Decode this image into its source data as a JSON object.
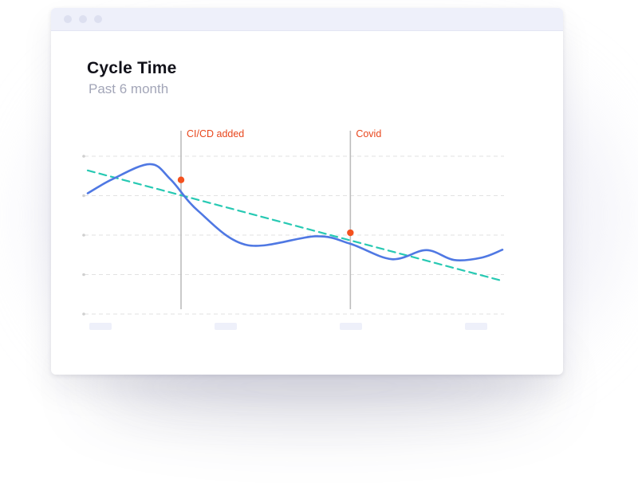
{
  "window": {
    "controls": [
      "window-dot",
      "window-dot",
      "window-dot"
    ]
  },
  "colors": {
    "series": "#4f78e3",
    "trend": "#27c9b3",
    "event_line": "#bdbdbd",
    "event_marker": "#f4511e",
    "event_label": "#e8461c",
    "grid": "#e2e2e2",
    "tick_placeholder": "#eef0fa"
  },
  "chart_data": {
    "type": "line",
    "title": "Cycle Time",
    "subtitle": "Past 6 month",
    "xlabel": "",
    "ylabel": "",
    "x_tick_labels": [
      "",
      "",
      "",
      ""
    ],
    "y_tick_labels": [
      "",
      "",
      "",
      "",
      ""
    ],
    "ylim": [
      0,
      4
    ],
    "xlim": [
      0,
      6
    ],
    "grid": true,
    "legend": "none",
    "series": [
      {
        "x": [
          0,
          0.36,
          0.9,
          1.2,
          1.6,
          2.3,
          3.3,
          3.8,
          4.4,
          4.9,
          5.3,
          5.7,
          6.0
        ],
        "y": [
          3.06,
          3.42,
          3.8,
          3.41,
          2.61,
          1.75,
          1.97,
          1.78,
          1.39,
          1.62,
          1.37,
          1.43,
          1.63
        ]
      }
    ],
    "trendline": {
      "style": "dashed",
      "x": [
        0,
        6
      ],
      "y": [
        3.64,
        0.84
      ]
    },
    "annotations": [
      {
        "label": "CI/CD added",
        "x": 1.35,
        "y": 3.4
      },
      {
        "label": "Covid",
        "x": 3.8,
        "y": 2.06
      }
    ]
  }
}
